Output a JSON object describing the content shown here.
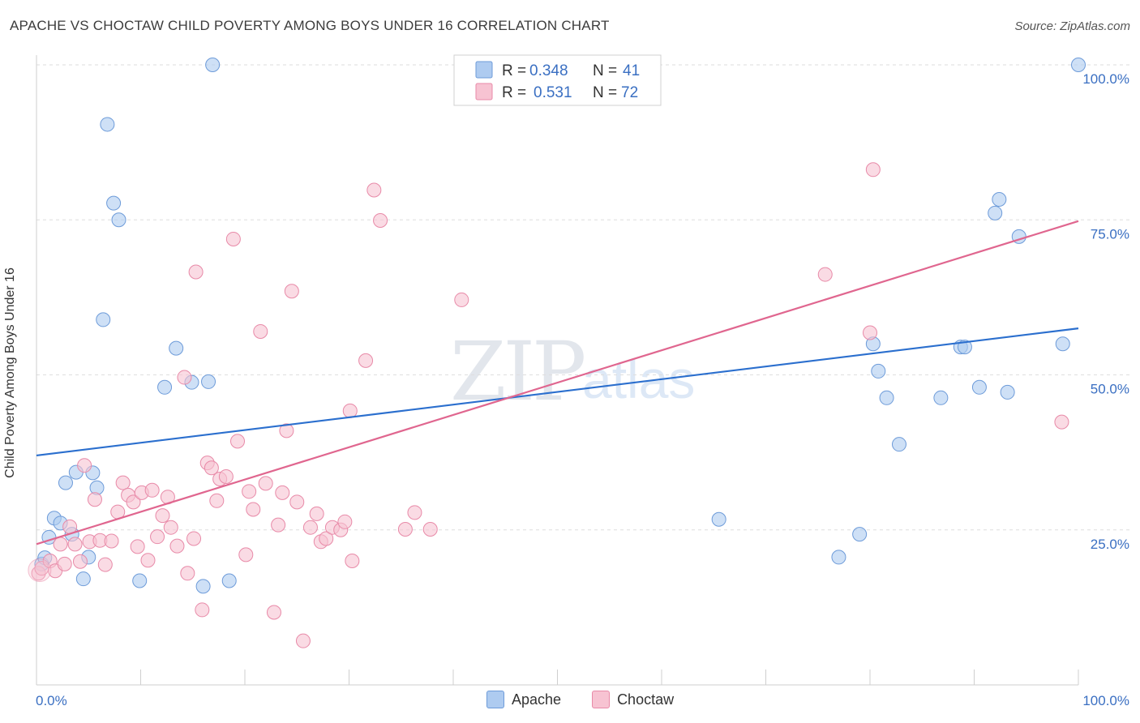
{
  "title": "APACHE VS CHOCTAW CHILD POVERTY AMONG BOYS UNDER 16 CORRELATION CHART",
  "source": "Source: ZipAtlas.com",
  "watermark": {
    "zip": "ZIP",
    "atlas": "atlas"
  },
  "legend": {
    "r_label": "R =",
    "n_label": "N =",
    "apache": {
      "r": "0.348",
      "n": "41"
    },
    "choctaw": {
      "r": "0.531",
      "n": "72"
    }
  },
  "bottom_legend": {
    "apache": "Apache",
    "choctaw": "Choctaw"
  },
  "colors": {
    "apache_fill": "#aecbf0",
    "apache_stroke": "#6d9bd9",
    "apache_line": "#2b6fce",
    "choctaw_fill": "#f7c3d2",
    "choctaw_stroke": "#e88aa8",
    "choctaw_line": "#e0668f",
    "value_text": "#3a6fc2"
  },
  "chart_data": {
    "type": "scatter",
    "title": "APACHE VS CHOCTAW CHILD POVERTY AMONG BOYS UNDER 16 CORRELATION CHART",
    "xlabel": "",
    "ylabel": "Child Poverty Among Boys Under 16",
    "xlim": [
      0,
      100
    ],
    "ylim": [
      0,
      100
    ],
    "x_tick_labels": [
      "0.0%",
      "100.0%"
    ],
    "y_tick_labels": [
      "25.0%",
      "50.0%",
      "75.0%",
      "100.0%"
    ],
    "y_ticks": [
      25,
      50,
      75,
      100
    ],
    "series": [
      {
        "name": "Apache",
        "points": [
          [
            0.5,
            19.5
          ],
          [
            0.8,
            20.5
          ],
          [
            1.2,
            23.8
          ],
          [
            1.7,
            26.9
          ],
          [
            2.3,
            26.1
          ],
          [
            2.8,
            32.6
          ],
          [
            3.4,
            24.3
          ],
          [
            3.8,
            34.3
          ],
          [
            4.5,
            17.1
          ],
          [
            5.0,
            20.6
          ],
          [
            5.4,
            34.2
          ],
          [
            5.8,
            31.8
          ],
          [
            6.4,
            58.9
          ],
          [
            6.8,
            90.4
          ],
          [
            7.4,
            77.7
          ],
          [
            7.9,
            75.0
          ],
          [
            9.9,
            16.8
          ],
          [
            12.3,
            48.0
          ],
          [
            13.4,
            54.3
          ],
          [
            14.9,
            48.8
          ],
          [
            16.0,
            15.9
          ],
          [
            16.5,
            48.9
          ],
          [
            16.9,
            100.0
          ],
          [
            18.5,
            16.8
          ],
          [
            65.5,
            26.7
          ],
          [
            77.0,
            20.6
          ],
          [
            79.0,
            24.3
          ],
          [
            80.3,
            55.0
          ],
          [
            80.8,
            50.6
          ],
          [
            81.6,
            46.3
          ],
          [
            82.8,
            38.8
          ],
          [
            86.8,
            46.3
          ],
          [
            88.7,
            54.5
          ],
          [
            89.1,
            54.5
          ],
          [
            90.5,
            48.0
          ],
          [
            92.0,
            76.1
          ],
          [
            92.4,
            78.3
          ],
          [
            93.2,
            47.2
          ],
          [
            94.3,
            72.3
          ],
          [
            98.5,
            55.0
          ],
          [
            100.0,
            100.0
          ]
        ]
      },
      {
        "name": "Choctaw",
        "points": [
          [
            0.2,
            18.0
          ],
          [
            0.5,
            18.8
          ],
          [
            1.3,
            20.0
          ],
          [
            1.8,
            18.4
          ],
          [
            2.3,
            22.7
          ],
          [
            2.7,
            19.5
          ],
          [
            3.2,
            25.5
          ],
          [
            3.7,
            22.7
          ],
          [
            4.2,
            19.9
          ],
          [
            4.6,
            35.4
          ],
          [
            5.1,
            23.1
          ],
          [
            5.6,
            29.9
          ],
          [
            6.1,
            23.3
          ],
          [
            6.6,
            19.4
          ],
          [
            7.2,
            23.2
          ],
          [
            7.8,
            27.9
          ],
          [
            8.3,
            32.6
          ],
          [
            8.8,
            30.6
          ],
          [
            9.3,
            29.5
          ],
          [
            9.7,
            22.3
          ],
          [
            10.1,
            31.0
          ],
          [
            10.7,
            20.1
          ],
          [
            11.1,
            31.4
          ],
          [
            11.6,
            23.9
          ],
          [
            12.1,
            27.3
          ],
          [
            12.6,
            30.3
          ],
          [
            12.9,
            25.4
          ],
          [
            13.5,
            22.4
          ],
          [
            14.2,
            49.6
          ],
          [
            14.5,
            18.0
          ],
          [
            15.1,
            23.6
          ],
          [
            15.3,
            66.6
          ],
          [
            15.9,
            12.1
          ],
          [
            16.4,
            35.8
          ],
          [
            16.8,
            35.0
          ],
          [
            17.3,
            29.7
          ],
          [
            17.6,
            33.2
          ],
          [
            18.2,
            33.6
          ],
          [
            18.9,
            71.9
          ],
          [
            19.3,
            39.3
          ],
          [
            20.1,
            21.0
          ],
          [
            20.4,
            31.2
          ],
          [
            20.8,
            28.3
          ],
          [
            21.5,
            57.0
          ],
          [
            22.0,
            32.5
          ],
          [
            22.8,
            11.7
          ],
          [
            23.2,
            25.8
          ],
          [
            23.6,
            31.0
          ],
          [
            24.0,
            41.0
          ],
          [
            24.5,
            63.5
          ],
          [
            25.0,
            29.5
          ],
          [
            25.6,
            7.1
          ],
          [
            26.3,
            25.4
          ],
          [
            26.9,
            27.6
          ],
          [
            27.3,
            23.1
          ],
          [
            27.8,
            23.6
          ],
          [
            28.4,
            25.4
          ],
          [
            29.2,
            25.0
          ],
          [
            29.6,
            26.3
          ],
          [
            30.1,
            44.2
          ],
          [
            30.3,
            20.0
          ],
          [
            31.6,
            52.3
          ],
          [
            32.4,
            79.8
          ],
          [
            33.0,
            74.9
          ],
          [
            35.4,
            25.1
          ],
          [
            36.3,
            27.8
          ],
          [
            37.8,
            25.1
          ],
          [
            40.8,
            62.1
          ],
          [
            75.7,
            66.2
          ],
          [
            80.0,
            56.8
          ],
          [
            80.3,
            83.1
          ],
          [
            98.4,
            42.4
          ]
        ]
      }
    ],
    "trendlines": [
      {
        "name": "Apache",
        "x": [
          0,
          100
        ],
        "y": [
          37.0,
          57.5
        ]
      },
      {
        "name": "Choctaw",
        "x": [
          0,
          100
        ],
        "y": [
          22.7,
          74.8
        ]
      }
    ]
  }
}
